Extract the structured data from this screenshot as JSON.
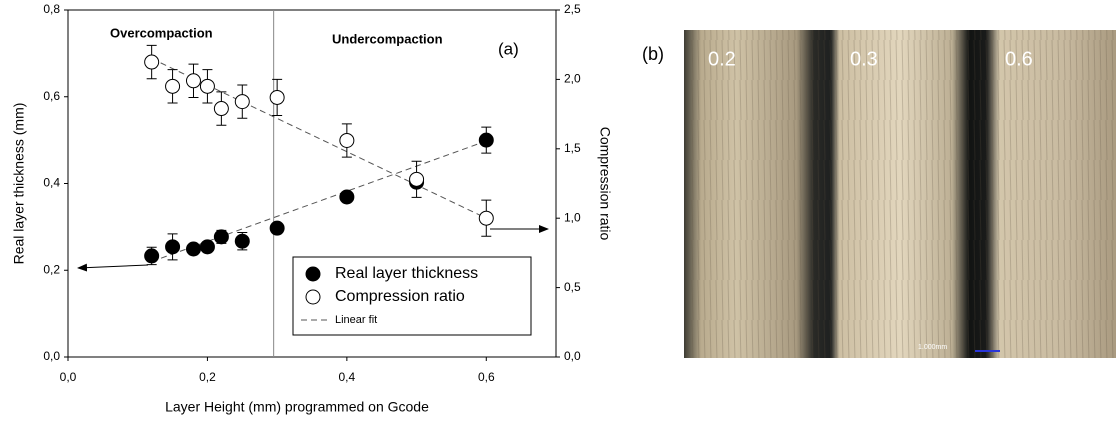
{
  "chart_data": {
    "type": "scatter",
    "annotations": [
      "Overcompaction",
      "Undercompaction",
      "(a)"
    ],
    "xlabel": "Layer Height (mm) programmed on Gcode",
    "ylabel": "Real layer thickness (mm)",
    "y2label": "Compression ratio",
    "xlim": [
      0,
      0.7
    ],
    "xticks": [
      {
        "value": 0,
        "label": "0,0"
      },
      {
        "value": 0.2,
        "label": "0,2"
      },
      {
        "value": 0.4,
        "label": "0,4"
      },
      {
        "value": 0.6,
        "label": "0,6"
      }
    ],
    "ylim": [
      0,
      0.8
    ],
    "yticks": [
      {
        "value": 0,
        "label": "0,0"
      },
      {
        "value": 0.2,
        "label": "0,2"
      },
      {
        "value": 0.4,
        "label": "0,4"
      },
      {
        "value": 0.6,
        "label": "0,6"
      },
      {
        "value": 0.8,
        "label": "0,8"
      }
    ],
    "y2lim": [
      0,
      2.5
    ],
    "y2ticks": [
      {
        "value": 0,
        "label": "0,0"
      },
      {
        "value": 0.5,
        "label": "0,5"
      },
      {
        "value": 1,
        "label": "1,0"
      },
      {
        "value": 1.5,
        "label": "1,5"
      },
      {
        "value": 2,
        "label": "2,0"
      },
      {
        "value": 2.5,
        "label": "2,5"
      }
    ],
    "vline": 0.295,
    "legend": "lower right",
    "series": [
      {
        "name": "Real layer thickness",
        "color": "#000000",
        "marker": "filled",
        "x": [
          0.12,
          0.15,
          0.18,
          0.2,
          0.22,
          0.25,
          0.3,
          0.4,
          0.5,
          0.6
        ],
        "values": [
          0.233,
          0.254,
          0.249,
          0.254,
          0.277,
          0.267,
          0.297,
          0.369,
          0.403,
          0.5
        ],
        "errors": [
          0.02,
          0.03,
          0.01,
          0.01,
          0.015,
          0.02,
          0.01,
          0.01,
          0.01,
          0.03
        ]
      },
      {
        "name": "Compression ratio",
        "color": "#000000",
        "marker": "open",
        "axis": "y2",
        "x": [
          0.12,
          0.15,
          0.18,
          0.2,
          0.22,
          0.25,
          0.3,
          0.4,
          0.5,
          0.6
        ],
        "values": [
          2.125,
          1.95,
          1.99,
          1.95,
          1.79,
          1.84,
          1.87,
          1.56,
          1.28,
          1.0
        ],
        "errors": [
          0.12,
          0.12,
          0.12,
          0.12,
          0.12,
          0.12,
          0.13,
          0.12,
          0.13,
          0.13
        ]
      }
    ],
    "linear_fit": {
      "name": "Linear fit",
      "color": "#555555",
      "lines": [
        {
          "x": [
            0.12,
            0.6
          ],
          "values": [
            0.22,
            0.498
          ]
        },
        {
          "x": [
            0.12,
            0.6
          ],
          "values": [
            2.15,
            1.0
          ],
          "axis": "y2"
        }
      ]
    }
  },
  "photo_panel": {
    "label": "(b)",
    "strip_labels": [
      "0.2",
      "0.3",
      "0.6"
    ],
    "scale_bar": "1.000mm"
  }
}
